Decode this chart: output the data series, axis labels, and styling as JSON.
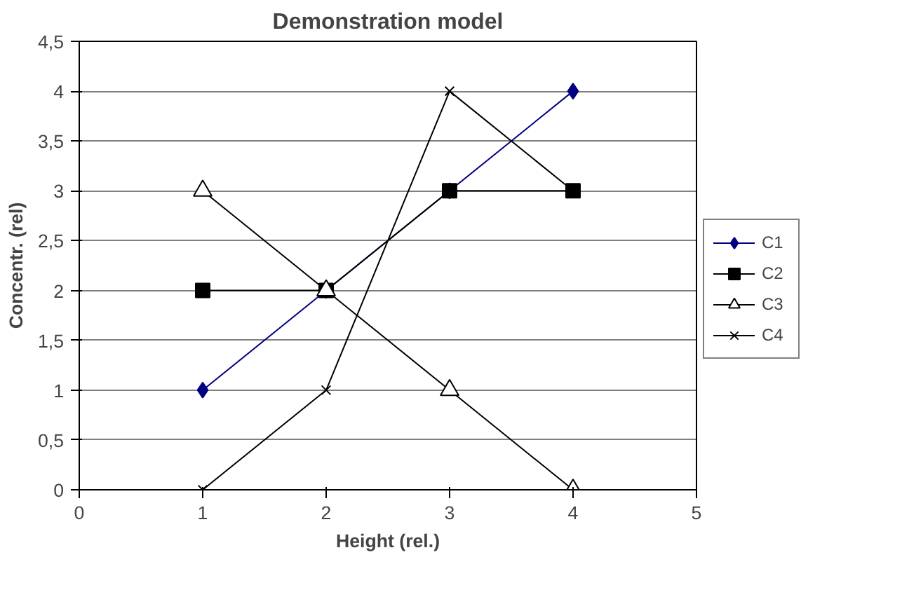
{
  "chart_data": {
    "type": "line",
    "title": "Demonstration model",
    "xlabel": "Height (rel.)",
    "ylabel": "Concentr. (rel)",
    "x": [
      1,
      2,
      3,
      4
    ],
    "series": [
      {
        "name": "C1",
        "color": "#000080",
        "values": [
          1,
          2,
          3,
          4
        ],
        "marker": "diamond"
      },
      {
        "name": "C2",
        "color": "#000000",
        "values": [
          2,
          2,
          3,
          3
        ],
        "marker": "square"
      },
      {
        "name": "C3",
        "color": "#000000",
        "values": [
          3,
          2,
          1,
          0
        ],
        "marker": "triangle"
      },
      {
        "name": "C4",
        "color": "#000000",
        "values": [
          0,
          1,
          4,
          3
        ],
        "marker": "cross"
      }
    ],
    "xlim": [
      0,
      5
    ],
    "xticks": [
      0,
      1,
      2,
      3,
      4,
      5
    ],
    "ylim": [
      0,
      4.5
    ],
    "yticks": [
      0,
      {
        "value": 0.5,
        "label": "0,5"
      },
      1,
      {
        "value": 1.5,
        "label": "1,5"
      },
      2,
      {
        "value": 2.5,
        "label": "2,5"
      },
      3,
      {
        "value": 3.5,
        "label": "3,5"
      },
      4,
      {
        "value": 4.5,
        "label": "4,5"
      }
    ],
    "grid": "y",
    "legend": "right",
    "line_style": "solid"
  }
}
